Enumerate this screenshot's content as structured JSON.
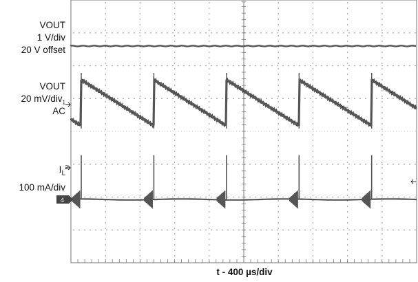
{
  "chart_data": {
    "type": "line",
    "title": "",
    "xlabel": "t - 400 µs/div",
    "x_divisions": 10,
    "y_divisions": 8,
    "grid": true,
    "channels": [
      {
        "name": "VOUT",
        "labels": [
          "VOUT",
          "1 V/div",
          "20 V offset"
        ],
        "shape": "flat",
        "description_values": {
          "level_div": 6.6
        }
      },
      {
        "name": "VOUT",
        "labels": [
          "VOUT",
          "20 mV/div",
          "AC"
        ],
        "marker": "1",
        "shape": "sawtooth",
        "period_div": 2.1,
        "jump_div": 1.4
      },
      {
        "name": "IL",
        "labels": [
          "I",
          "L",
          "100 mA/div"
        ],
        "marker": "2",
        "shape": "baseline-with-spikes",
        "baseline_marker": "4",
        "spike_height_div": 1.35
      }
    ]
  },
  "labels": {
    "ch1_line1": "VOUT",
    "ch1_line2": "1 V/div",
    "ch1_line3": "20 V offset",
    "ch2_line1": "VOUT",
    "ch2_line2": "20 mV/div",
    "ch2_marker": "1",
    "ch2_line3": "AC",
    "ch3_main": "I",
    "ch3_sub": "L",
    "ch3_marker": "2",
    "ch3_line2": "100 mA/div",
    "ch3_baseline_marker": "4"
  },
  "colors": {
    "trace": "#555555",
    "grid_dot": "#8a8a8a",
    "frame": "#777777",
    "marker_bg": "#444444"
  }
}
